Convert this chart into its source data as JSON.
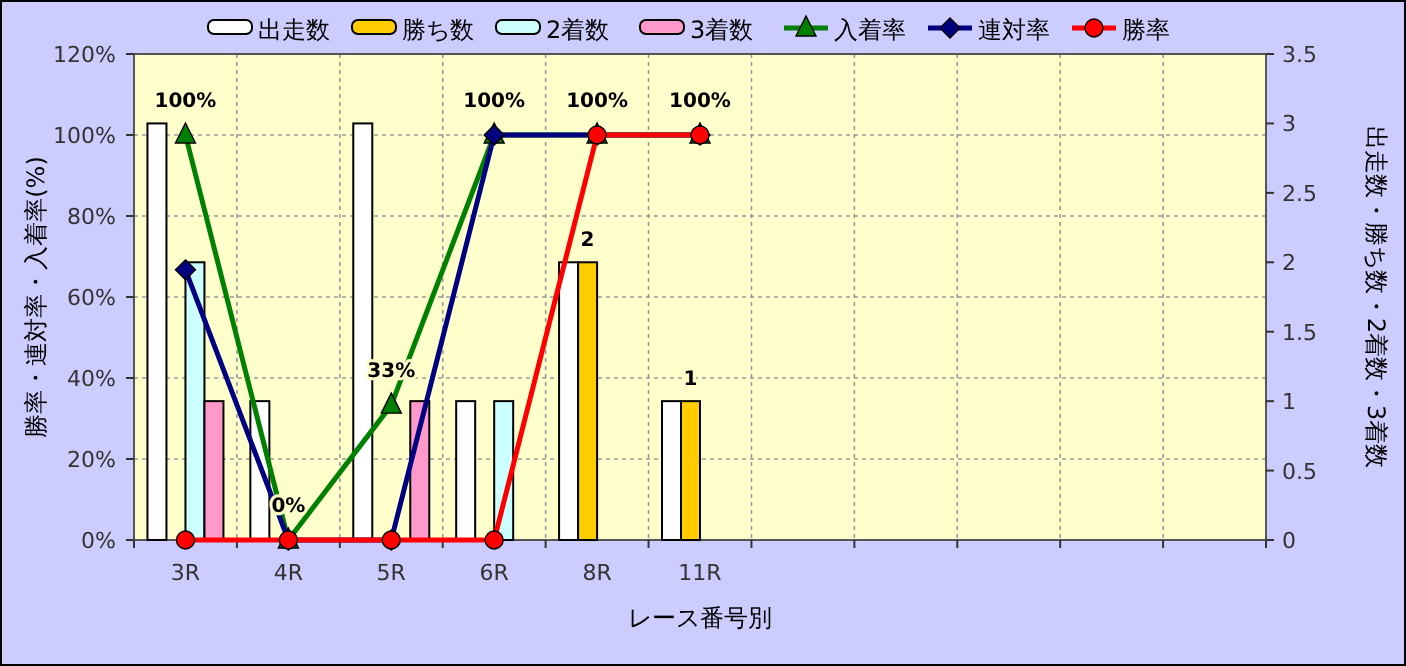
{
  "chart_data": {
    "type": "bar",
    "xlabel": "レース番号別",
    "ylabel": "勝率・連対率・入着率(%)",
    "y2label": "出走数・勝ち数・2着数・3着数",
    "categories": [
      "3R",
      "4R",
      "5R",
      "6R",
      "8R",
      "11R",
      null,
      null,
      null,
      null,
      null
    ],
    "series": [
      {
        "name": "出走数",
        "axis": "y2",
        "color": "#ffffff",
        "values": [
          3,
          1,
          3,
          1,
          2,
          1,
          null,
          null,
          null,
          null,
          null
        ]
      },
      {
        "name": "勝ち数",
        "axis": "y2",
        "color": "#ffcc00",
        "values": [
          0,
          0,
          0,
          0,
          2,
          1,
          null,
          null,
          null,
          null,
          null
        ],
        "value_labels": [
          null,
          null,
          null,
          null,
          "2",
          "1",
          null,
          null,
          null,
          null,
          null
        ]
      },
      {
        "name": "2着数",
        "axis": "y2",
        "color": "#ccffff",
        "values": [
          2,
          0,
          0,
          1,
          0,
          0,
          null,
          null,
          null,
          null,
          null
        ]
      },
      {
        "name": "3着数",
        "axis": "y2",
        "color": "#ff99cc",
        "values": [
          1,
          0,
          1,
          0,
          0,
          0,
          null,
          null,
          null,
          null,
          null
        ]
      },
      {
        "name": "入着率",
        "type": "line",
        "color": "#008000",
        "marker": "triangle",
        "values": [
          100,
          0,
          33.3,
          100,
          100,
          100,
          null,
          null,
          null,
          null,
          null
        ],
        "value_labels": [
          "100%",
          "0%",
          "33%",
          "100%",
          "100%",
          "100%",
          null,
          null,
          null,
          null,
          null
        ]
      },
      {
        "name": "連対率",
        "type": "line",
        "color": "#000080",
        "marker": "diamond",
        "values": [
          66.7,
          0,
          0,
          100,
          100,
          100,
          null,
          null,
          null,
          null,
          null
        ]
      },
      {
        "name": "勝率",
        "type": "line",
        "color": "#ff0000",
        "marker": "circle",
        "values": [
          0,
          0,
          0,
          0,
          100,
          100,
          null,
          null,
          null,
          null,
          null
        ]
      }
    ],
    "ylim": [
      0,
      120
    ],
    "yticks": [
      {
        "value": 0,
        "label": "0%"
      },
      {
        "value": 20,
        "label": "20%"
      },
      {
        "value": 40,
        "label": "40%"
      },
      {
        "value": 60,
        "label": "60%"
      },
      {
        "value": 80,
        "label": "80%"
      },
      {
        "value": 100,
        "label": "100%"
      },
      {
        "value": 120,
        "label": "120%"
      }
    ],
    "y2lim": [
      0,
      3.5
    ],
    "y2ticks": [
      0,
      0.5,
      1,
      1.5,
      2,
      2.5,
      3,
      3.5
    ],
    "grid": true,
    "legend": "top"
  }
}
